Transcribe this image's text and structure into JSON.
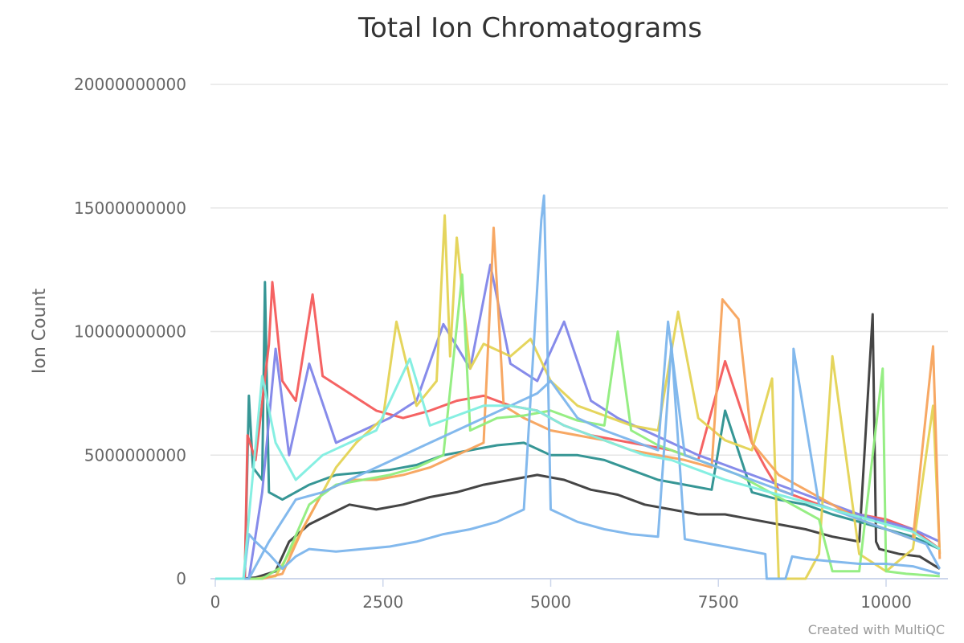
{
  "chart_data": {
    "type": "line",
    "title": "Total Ion Chromatograms",
    "xlabel": "",
    "ylabel": "Ion Count",
    "xlim": [
      0,
      10900
    ],
    "ylim": [
      0,
      20000000000
    ],
    "x_ticks": [
      0,
      2500,
      5000,
      7500,
      10000
    ],
    "y_ticks": [
      0,
      5000000000,
      10000000000,
      15000000000,
      20000000000
    ],
    "x_tick_labels": [
      "0",
      "2500",
      "5000",
      "7500",
      "10000"
    ],
    "y_tick_labels": [
      "0",
      "5000000000",
      "10000000000",
      "15000000000",
      "20000000000"
    ],
    "grid": true,
    "legend": "none",
    "credit": "Created with MultiQC",
    "series": [
      {
        "color": "#3b3b3b",
        "x": [
          0,
          400,
          600,
          900,
          1100,
          1400,
          1700,
          2000,
          2400,
          2800,
          3200,
          3600,
          4000,
          4400,
          4800,
          5200,
          5600,
          6000,
          6400,
          6800,
          7200,
          7600,
          8000,
          8400,
          8800,
          9200,
          9600,
          9800,
          9850,
          9900,
          10200,
          10500,
          10800
        ],
        "y": [
          0,
          0,
          50000000,
          300000000,
          1500000000,
          2200000000,
          2600000000,
          3000000000,
          2800000000,
          3000000000,
          3300000000,
          3500000000,
          3800000000,
          4000000000,
          4200000000,
          4000000000,
          3600000000,
          3400000000,
          3000000000,
          2800000000,
          2600000000,
          2600000000,
          2400000000,
          2200000000,
          2000000000,
          1700000000,
          1500000000,
          10700000000,
          1500000000,
          1200000000,
          1000000000,
          900000000,
          400000000
        ]
      },
      {
        "color": "#2b908f",
        "x": [
          0,
          440,
          500,
          560,
          700,
          740,
          800,
          1000,
          1400,
          1800,
          2200,
          2600,
          3000,
          3400,
          3800,
          4200,
          4600,
          5000,
          5400,
          5800,
          6200,
          6600,
          7000,
          7400,
          7600,
          8000,
          8400,
          8800,
          9200,
          9600,
          10000,
          10400,
          10800
        ],
        "y": [
          0,
          0,
          7400000000,
          4500000000,
          4000000000,
          12000000000,
          3500000000,
          3200000000,
          3800000000,
          4200000000,
          4300000000,
          4400000000,
          4600000000,
          5000000000,
          5200000000,
          5400000000,
          5500000000,
          5000000000,
          5000000000,
          4800000000,
          4400000000,
          4000000000,
          3800000000,
          3600000000,
          6800000000,
          3500000000,
          3200000000,
          3000000000,
          2600000000,
          2300000000,
          2000000000,
          1700000000,
          1200000000
        ]
      },
      {
        "color": "#f45b5b",
        "x": [
          0,
          440,
          480,
          600,
          800,
          850,
          1000,
          1200,
          1450,
          1600,
          2000,
          2400,
          2800,
          3200,
          3600,
          4000,
          4400,
          4800,
          5200,
          5600,
          6000,
          6400,
          6800,
          7200,
          7600,
          8000,
          8200,
          8400,
          8800,
          9200,
          9600,
          10000,
          10400,
          10800
        ],
        "y": [
          0,
          0,
          5800000000,
          4800000000,
          9500000000,
          12000000000,
          8000000000,
          7200000000,
          11500000000,
          8200000000,
          7500000000,
          6800000000,
          6500000000,
          6800000000,
          7200000000,
          7400000000,
          7000000000,
          6800000000,
          6200000000,
          5800000000,
          5600000000,
          5400000000,
          5200000000,
          4800000000,
          8800000000,
          5500000000,
          4500000000,
          3600000000,
          3200000000,
          2800000000,
          2600000000,
          2400000000,
          2000000000,
          1200000000
        ]
      },
      {
        "color": "#8085e9",
        "x": [
          0,
          500,
          700,
          900,
          1100,
          1400,
          1800,
          2200,
          2600,
          3000,
          3400,
          3800,
          4100,
          4400,
          4800,
          5200,
          5600,
          6000,
          6400,
          6800,
          7200,
          7600,
          8000,
          8400,
          8800,
          9200,
          9600,
          10000,
          10400,
          10800
        ],
        "y": [
          0,
          0,
          3500000000,
          9300000000,
          5000000000,
          8700000000,
          5500000000,
          6000000000,
          6500000000,
          7200000000,
          10300000000,
          8500000000,
          12700000000,
          8700000000,
          8000000000,
          10400000000,
          7200000000,
          6500000000,
          6000000000,
          5500000000,
          5000000000,
          4600000000,
          4200000000,
          3800000000,
          3400000000,
          3000000000,
          2600000000,
          2300000000,
          2000000000,
          1500000000
        ]
      },
      {
        "color": "#e4d354",
        "x": [
          0,
          600,
          900,
          1200,
          1500,
          1800,
          2100,
          2500,
          2700,
          3000,
          3300,
          3420,
          3500,
          3600,
          3800,
          4000,
          4400,
          4700,
          5000,
          5400,
          5800,
          6200,
          6600,
          6900,
          7200,
          7600,
          8000,
          8300,
          8400,
          8800,
          9000,
          9200,
          9600,
          10000,
          10400,
          10700,
          10800
        ],
        "y": [
          0,
          0,
          100000000,
          1500000000,
          3000000000,
          4500000000,
          5500000000,
          6500000000,
          10400000000,
          7000000000,
          8000000000,
          14700000000,
          9000000000,
          13800000000,
          8500000000,
          9500000000,
          9000000000,
          9700000000,
          8000000000,
          7000000000,
          6600000000,
          6200000000,
          6000000000,
          10800000000,
          6500000000,
          5600000000,
          5200000000,
          8100000000,
          0,
          0,
          1000000000,
          9000000000,
          1000000000,
          300000000,
          1200000000,
          7000000000,
          1000000000
        ]
      },
      {
        "color": "#f7a35c",
        "x": [
          0,
          700,
          1000,
          1300,
          1600,
          2000,
          2400,
          2800,
          3200,
          3600,
          4000,
          4150,
          4300,
          4600,
          5000,
          5400,
          5800,
          6200,
          6600,
          7000,
          7400,
          7560,
          7800,
          8000,
          8400,
          8800,
          9200,
          9600,
          10000,
          10400,
          10700,
          10800
        ],
        "y": [
          0,
          0,
          200000000,
          2000000000,
          3500000000,
          4000000000,
          4000000000,
          4200000000,
          4500000000,
          5000000000,
          5500000000,
          14200000000,
          7000000000,
          6500000000,
          6000000000,
          5800000000,
          5600000000,
          5200000000,
          5000000000,
          4800000000,
          4500000000,
          11300000000,
          10500000000,
          5500000000,
          4200000000,
          3600000000,
          3000000000,
          2400000000,
          2000000000,
          1600000000,
          9400000000,
          800000000
        ]
      },
      {
        "color": "#90ed7d",
        "x": [
          0,
          700,
          1000,
          1400,
          1800,
          2200,
          2600,
          3000,
          3400,
          3680,
          3800,
          4200,
          4600,
          5000,
          5400,
          5800,
          6000,
          6200,
          6600,
          7000,
          7400,
          7800,
          8200,
          8600,
          9000,
          9200,
          9600,
          9950,
          10000,
          10300,
          10800
        ],
        "y": [
          0,
          0,
          500000000,
          3000000000,
          3800000000,
          4000000000,
          4200000000,
          4500000000,
          5000000000,
          12300000000,
          6000000000,
          6500000000,
          6600000000,
          6800000000,
          6400000000,
          6200000000,
          10000000000,
          6000000000,
          5400000000,
          5000000000,
          4600000000,
          4200000000,
          3600000000,
          3000000000,
          2400000000,
          300000000,
          300000000,
          8500000000,
          300000000,
          200000000,
          100000000
        ]
      },
      {
        "color": "#7cb5ec",
        "x": [
          0,
          420,
          500,
          600,
          800,
          1000,
          1200,
          1400,
          1800,
          2200,
          2600,
          3000,
          3400,
          3800,
          4200,
          4600,
          4860,
          4900,
          4940,
          5000,
          5400,
          5800,
          6200,
          6600,
          6800,
          7000,
          7400,
          7600,
          8000,
          8200,
          8220,
          8500,
          8600,
          8800,
          9200,
          9600,
          10000,
          10400,
          10800
        ],
        "y": [
          0,
          0,
          1800000000,
          1500000000,
          1000000000,
          400000000,
          900000000,
          1200000000,
          1100000000,
          1200000000,
          1300000000,
          1500000000,
          1800000000,
          2000000000,
          2300000000,
          2800000000,
          14500000000,
          15500000000,
          11000000000,
          2800000000,
          2300000000,
          2000000000,
          1800000000,
          1700000000,
          9500000000,
          1600000000,
          1400000000,
          1300000000,
          1100000000,
          1000000000,
          0,
          0,
          900000000,
          800000000,
          700000000,
          600000000,
          600000000,
          500000000,
          200000000
        ]
      },
      {
        "color": "#7cb5ec",
        "x": [
          0,
          500,
          800,
          1200,
          1600,
          2000,
          2400,
          2800,
          3200,
          3600,
          4000,
          4400,
          4800,
          5000,
          5400,
          5800,
          6200,
          6600,
          6750,
          7000,
          7400,
          7800,
          8200,
          8600,
          8620,
          9000,
          9400,
          9800,
          10200,
          10600,
          10800
        ],
        "y": [
          0,
          0,
          1500000000,
          3200000000,
          3500000000,
          4000000000,
          4500000000,
          5000000000,
          5500000000,
          6000000000,
          6500000000,
          7000000000,
          7500000000,
          8000000000,
          6500000000,
          6000000000,
          5600000000,
          5200000000,
          10400000000,
          5000000000,
          4600000000,
          4200000000,
          3800000000,
          3400000000,
          9300000000,
          3000000000,
          2600000000,
          2200000000,
          1800000000,
          1400000000,
          400000000
        ]
      },
      {
        "color": "#80eee0",
        "x": [
          0,
          420,
          500,
          700,
          900,
          1200,
          1600,
          2000,
          2400,
          2900,
          3200,
          3600,
          4000,
          4400,
          4800,
          5200,
          5600,
          6000,
          6400,
          6800,
          7200,
          7600,
          8000,
          8400,
          8800,
          9200,
          9600,
          10000,
          10400,
          10800
        ],
        "y": [
          0,
          0,
          2500000000,
          8200000000,
          5500000000,
          4000000000,
          5000000000,
          5500000000,
          6000000000,
          8900000000,
          6200000000,
          6600000000,
          7000000000,
          7000000000,
          6800000000,
          6200000000,
          5800000000,
          5400000000,
          5000000000,
          4800000000,
          4400000000,
          4000000000,
          3700000000,
          3400000000,
          3100000000,
          2800000000,
          2500000000,
          2200000000,
          1900000000,
          1200000000
        ]
      }
    ]
  }
}
